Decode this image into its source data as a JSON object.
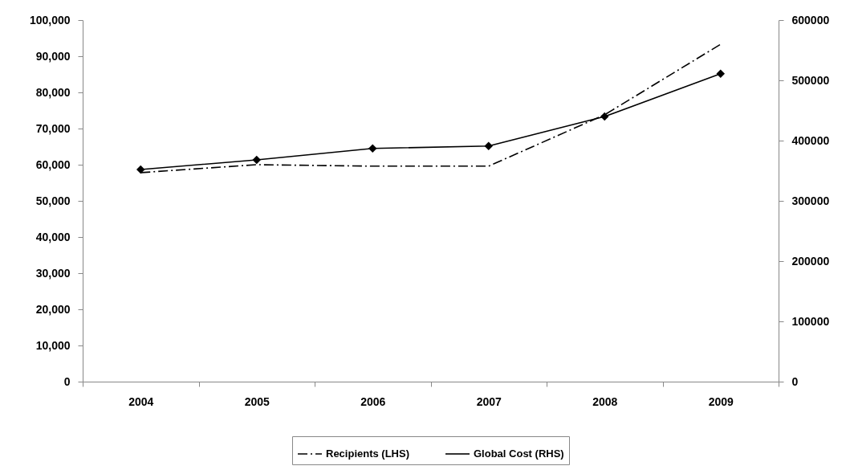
{
  "chart_data": {
    "type": "line",
    "categories": [
      "2004",
      "2005",
      "2006",
      "2007",
      "2008",
      "2009"
    ],
    "series": [
      {
        "name": "Recipients (LHS)",
        "color": "#000000",
        "line_style": "dashed",
        "marker": "none",
        "values": [
          57800,
          60000,
          59600,
          59600,
          73800,
          93300
        ]
      },
      {
        "name": "Global Cost (RHS)",
        "color": "#000000",
        "line_style": "solid",
        "marker": "diamond",
        "axis": "y2",
        "values": [
          352000,
          368000,
          387000,
          391000,
          440000,
          511000
        ]
      }
    ],
    "ylim": [
      0,
      100000
    ],
    "yticks": [
      {
        "value": 0,
        "label": "0"
      },
      {
        "value": 10000,
        "label": "10,000"
      },
      {
        "value": 20000,
        "label": "20,000"
      },
      {
        "value": 30000,
        "label": "30,000"
      },
      {
        "value": 40000,
        "label": "40,000"
      },
      {
        "value": 50000,
        "label": "50,000"
      },
      {
        "value": 60000,
        "label": "60,000"
      },
      {
        "value": 70000,
        "label": "70,000"
      },
      {
        "value": 80000,
        "label": "80,000"
      },
      {
        "value": 90000,
        "label": "90,000"
      },
      {
        "value": 100000,
        "label": "100,000"
      }
    ],
    "y2lim": [
      0,
      600000
    ],
    "y2ticks": [
      0,
      100000,
      200000,
      300000,
      400000,
      500000,
      600000
    ],
    "grid": false,
    "legend": "bottom"
  }
}
